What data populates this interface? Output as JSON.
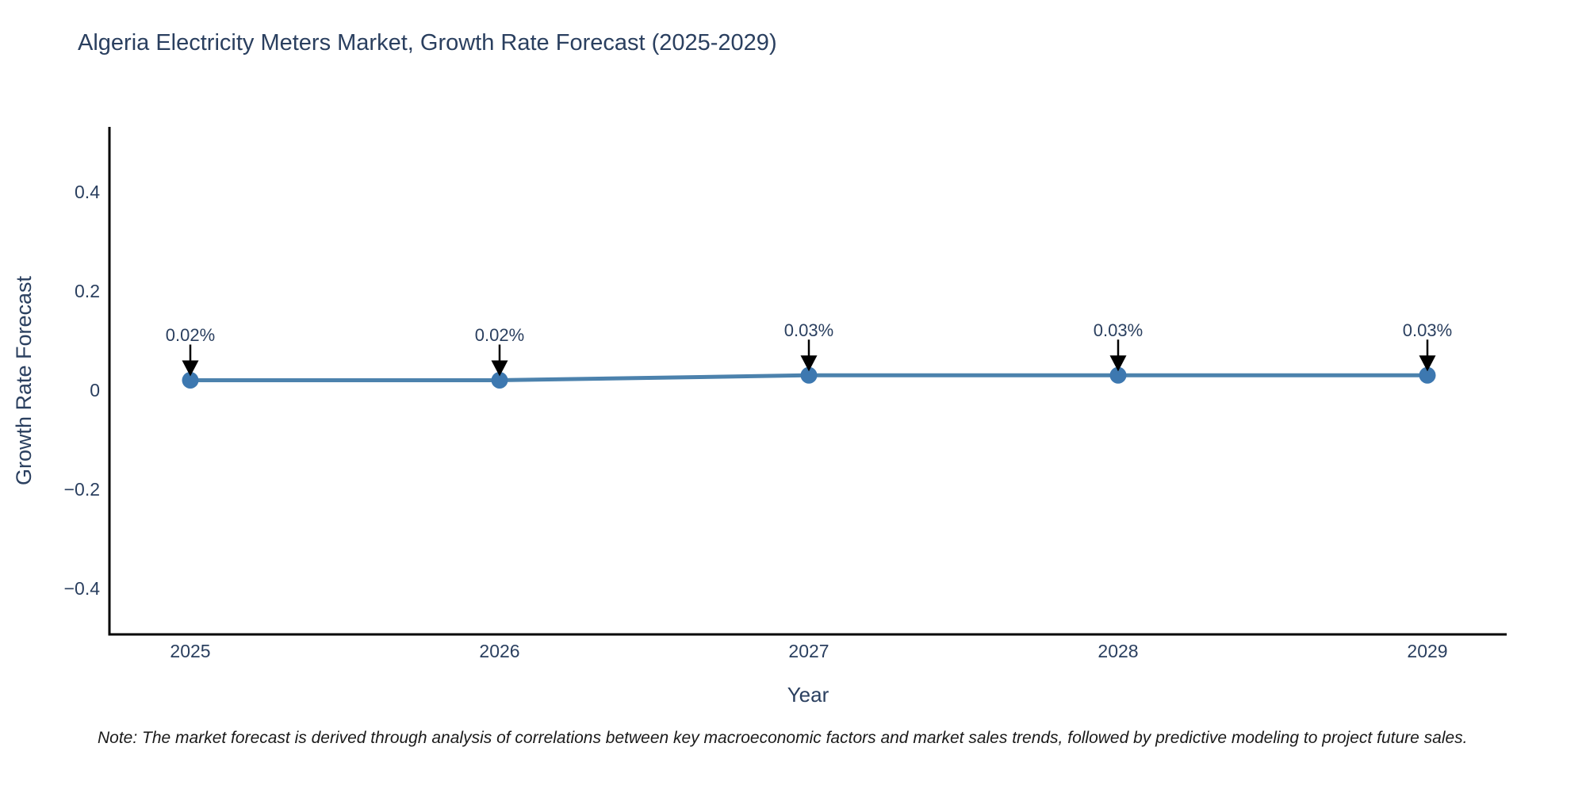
{
  "title": "Algeria Electricity Meters Market, Growth Rate Forecast (2025-2029)",
  "footnote": "Note: The market forecast is derived through analysis of correlations between key macroeconomic factors and market sales trends, followed by predictive modeling to project future sales.",
  "chart_data": {
    "type": "line",
    "title": "Algeria Electricity Meters Market, Growth Rate Forecast (2025-2029)",
    "xlabel": "Year",
    "ylabel": "Growth Rate Forecast",
    "x": [
      "2025",
      "2026",
      "2027",
      "2028",
      "2029"
    ],
    "values": [
      0.02,
      0.02,
      0.03,
      0.03,
      0.03
    ],
    "point_labels": [
      "0.02%",
      "0.02%",
      "0.03%",
      "0.03%",
      "0.03%"
    ],
    "ylim": [
      -0.5,
      0.53
    ],
    "yticks": [
      0.4,
      0.2,
      0,
      -0.2,
      -0.4
    ],
    "ytick_labels": [
      "0.4",
      "0.2",
      "0",
      "−0.2",
      "−0.4"
    ],
    "grid": false,
    "legend": false,
    "colors": {
      "line": "#4c82ad",
      "marker": "#3d78b0",
      "axis": "#000000",
      "text": "#2a3f5f",
      "annotation_arrow": "#000000"
    }
  }
}
